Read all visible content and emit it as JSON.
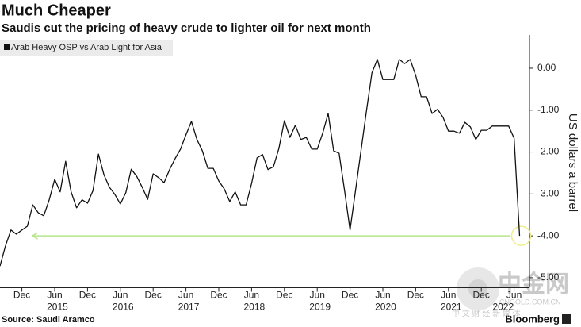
{
  "chart_data": {
    "type": "line",
    "title": "Much Cheaper",
    "subtitle": "Saudis cut the pricing of heavy crude to lighter oil for next month",
    "y_axis_label": "US dollars a barrel",
    "source": "Source: Saudi Aramco",
    "brand": "Bloomberg",
    "watermark": {
      "logo": "中金网",
      "site": "CNGOLD.COM.CN",
      "slogan": "中 文 财 经 新 媒 体"
    },
    "x": [
      "2014-08",
      "2014-09",
      "2014-10",
      "2014-11",
      "2014-12",
      "2015-01",
      "2015-02",
      "2015-03",
      "2015-04",
      "2015-05",
      "2015-06",
      "2015-07",
      "2015-08",
      "2015-09",
      "2015-10",
      "2015-11",
      "2015-12",
      "2016-01",
      "2016-02",
      "2016-03",
      "2016-04",
      "2016-05",
      "2016-06",
      "2016-07",
      "2016-08",
      "2016-09",
      "2016-10",
      "2016-11",
      "2016-12",
      "2017-01",
      "2017-02",
      "2017-03",
      "2017-04",
      "2017-05",
      "2017-06",
      "2017-07",
      "2017-08",
      "2017-09",
      "2017-10",
      "2017-11",
      "2017-12",
      "2018-01",
      "2018-02",
      "2018-03",
      "2018-04",
      "2018-05",
      "2018-06",
      "2018-07",
      "2018-08",
      "2018-09",
      "2018-10",
      "2018-11",
      "2018-12",
      "2019-01",
      "2019-02",
      "2019-03",
      "2019-04",
      "2019-05",
      "2019-06",
      "2019-07",
      "2019-08",
      "2019-09",
      "2019-10",
      "2019-11",
      "2019-12",
      "2020-01",
      "2020-02",
      "2020-03",
      "2020-04",
      "2020-05",
      "2020-06",
      "2020-07",
      "2020-08",
      "2020-09",
      "2020-10",
      "2020-11",
      "2020-12",
      "2021-01",
      "2021-02",
      "2021-03",
      "2021-04",
      "2021-05",
      "2021-06",
      "2021-07",
      "2021-08",
      "2021-09",
      "2021-10",
      "2021-11",
      "2021-12",
      "2022-01",
      "2022-02",
      "2022-03",
      "2022-04",
      "2022-05",
      "2022-06",
      "2022-07"
    ],
    "series": [
      {
        "name": "Arab Heavy OSP vs Arab Light for Asia",
        "color": "#111111",
        "values": [
          -4.72,
          -4.24,
          -3.86,
          -3.96,
          -3.86,
          -3.77,
          -3.26,
          -3.45,
          -3.52,
          -3.14,
          -2.65,
          -2.95,
          -2.22,
          -2.95,
          -3.33,
          -3.14,
          -3.22,
          -2.92,
          -2.05,
          -2.54,
          -2.84,
          -3.01,
          -3.24,
          -2.97,
          -2.41,
          -2.58,
          -2.84,
          -3.13,
          -2.52,
          -2.61,
          -2.73,
          -2.42,
          -2.16,
          -1.93,
          -1.59,
          -1.27,
          -1.7,
          -1.97,
          -2.39,
          -2.39,
          -2.69,
          -2.88,
          -3.18,
          -2.95,
          -3.26,
          -3.26,
          -2.75,
          -2.14,
          -2.06,
          -2.42,
          -2.35,
          -1.91,
          -1.25,
          -1.65,
          -1.36,
          -1.7,
          -1.65,
          -1.93,
          -1.93,
          -1.55,
          -1.08,
          -1.97,
          -2.03,
          -2.92,
          -3.86,
          -2.92,
          -1.97,
          -1.02,
          -0.11,
          0.21,
          -0.27,
          -0.27,
          -0.27,
          0.21,
          0.11,
          0.21,
          -0.17,
          -0.68,
          -0.68,
          -1.08,
          -0.98,
          -1.17,
          -1.5,
          -1.5,
          -1.55,
          -1.29,
          -1.4,
          -1.7,
          -1.48,
          -1.48,
          -1.38,
          -1.38,
          -1.38,
          -1.38,
          -1.67,
          -4.0
        ]
      }
    ],
    "reference_line": {
      "value": -4,
      "color": "#b5e68a"
    },
    "ylim": [
      -5.2,
      0.7
    ],
    "yticks": [
      {
        "value": 0,
        "label": "0.00"
      },
      {
        "value": -1,
        "label": "-1.00"
      },
      {
        "value": -2,
        "label": "-2.00"
      },
      {
        "value": -3,
        "label": "-3.00"
      },
      {
        "value": -4,
        "label": "-4.00"
      },
      {
        "value": -5,
        "label": "-5.00"
      }
    ],
    "xticks": [
      {
        "value": "2014-12",
        "label": "Dec"
      },
      {
        "value": "2015-06",
        "label": "Jun"
      },
      {
        "value": "2015-12",
        "label": "Dec"
      },
      {
        "value": "2016-06",
        "label": "Jun"
      },
      {
        "value": "2016-12",
        "label": "Dec"
      },
      {
        "value": "2017-06",
        "label": "Jun"
      },
      {
        "value": "2017-12",
        "label": "Dec"
      },
      {
        "value": "2018-06",
        "label": "Jun"
      },
      {
        "value": "2018-12",
        "label": "Dec"
      },
      {
        "value": "2019-06",
        "label": "Jun"
      },
      {
        "value": "2019-12",
        "label": "Dec"
      },
      {
        "value": "2020-06",
        "label": "Jun"
      },
      {
        "value": "2020-12",
        "label": "Dec"
      },
      {
        "value": "2021-06",
        "label": "Jun"
      },
      {
        "value": "2021-12",
        "label": "Dec"
      },
      {
        "value": "2022-06",
        "label": "Jun"
      }
    ],
    "year_labels": [
      2015,
      2016,
      2017,
      2018,
      2019,
      2020,
      2021,
      2022
    ],
    "grid": false
  }
}
